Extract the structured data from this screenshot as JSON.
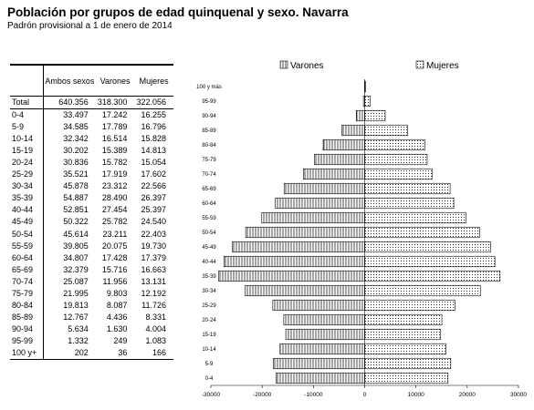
{
  "header": {
    "title": "Población por grupos de edad quinquenal y sexo. Navarra",
    "subtitle": "Padrón provisional a 1 de enero de 2014"
  },
  "table": {
    "columns": [
      "Ambos sexos",
      "Varones",
      "Mujeres"
    ],
    "total": {
      "label": "Total",
      "ambos": "640.356",
      "varones": "318.300",
      "mujeres": "322.056"
    },
    "rows": [
      {
        "label": "0-4",
        "ambos": "33.497",
        "varones": "17.242",
        "mujeres": "16.255"
      },
      {
        "label": "5-9",
        "ambos": "34.585",
        "varones": "17.789",
        "mujeres": "16.796"
      },
      {
        "label": "10-14",
        "ambos": "32.342",
        "varones": "16.514",
        "mujeres": "15.828"
      },
      {
        "label": "15-19",
        "ambos": "30.202",
        "varones": "15.389",
        "mujeres": "14.813"
      },
      {
        "label": "20-24",
        "ambos": "30.836",
        "varones": "15.782",
        "mujeres": "15.054"
      },
      {
        "label": "25-29",
        "ambos": "35.521",
        "varones": "17.919",
        "mujeres": "17.602"
      },
      {
        "label": "30-34",
        "ambos": "45.878",
        "varones": "23.312",
        "mujeres": "22.566"
      },
      {
        "label": "35-39",
        "ambos": "54.887",
        "varones": "28.490",
        "mujeres": "26.397"
      },
      {
        "label": "40-44",
        "ambos": "52.851",
        "varones": "27.454",
        "mujeres": "25.397"
      },
      {
        "label": "45-49",
        "ambos": "50.322",
        "varones": "25.782",
        "mujeres": "24.540"
      },
      {
        "label": "50-54",
        "ambos": "45.614",
        "varones": "23.211",
        "mujeres": "22.403"
      },
      {
        "label": "55-59",
        "ambos": "39.805",
        "varones": "20.075",
        "mujeres": "19.730"
      },
      {
        "label": "60-64",
        "ambos": "34.807",
        "varones": "17.428",
        "mujeres": "17.379"
      },
      {
        "label": "65-69",
        "ambos": "32.379",
        "varones": "15.716",
        "mujeres": "16.663"
      },
      {
        "label": "70-74",
        "ambos": "25.087",
        "varones": "11.956",
        "mujeres": "13.131"
      },
      {
        "label": "75-79",
        "ambos": "21.995",
        "varones": "9.803",
        "mujeres": "12.192"
      },
      {
        "label": "80-84",
        "ambos": "19.813",
        "varones": "8.087",
        "mujeres": "11.726"
      },
      {
        "label": "85-89",
        "ambos": "12.767",
        "varones": "4.436",
        "mujeres": "8.331"
      },
      {
        "label": "90-94",
        "ambos": "5.634",
        "varones": "1.630",
        "mujeres": "4.004"
      },
      {
        "label": "95-99",
        "ambos": "1.332",
        "varones": "249",
        "mujeres": "1.083"
      },
      {
        "label": "100 y+",
        "ambos": "202",
        "varones": "36",
        "mujeres": "166"
      }
    ]
  },
  "chart_data": {
    "type": "bar",
    "orientation": "horizontal",
    "title": "",
    "categories": [
      "0-4",
      "5-9",
      "10-14",
      "15-19",
      "20-24",
      "25-29",
      "30-34",
      "35-39",
      "40-44",
      "45-49",
      "50-54",
      "55-59",
      "60-64",
      "65-69",
      "70-74",
      "75-79",
      "80-84",
      "85-89",
      "90-94",
      "95-99",
      "100 y más"
    ],
    "series": [
      {
        "name": "Varones",
        "values": [
          -17242,
          -17789,
          -16514,
          -15389,
          -15782,
          -17919,
          -23312,
          -28490,
          -27454,
          -25782,
          -23211,
          -20075,
          -17428,
          -15716,
          -11956,
          -9803,
          -8087,
          -4436,
          -1630,
          -249,
          -36
        ]
      },
      {
        "name": "Mujeres",
        "values": [
          16255,
          16796,
          15828,
          14813,
          15054,
          17602,
          22566,
          26397,
          25397,
          24540,
          22403,
          19730,
          17379,
          16663,
          13131,
          12192,
          11726,
          8331,
          4004,
          1083,
          166
        ]
      }
    ],
    "xlim": [
      -30000,
      30000
    ],
    "xticks": [
      -30000,
      -20000,
      -10000,
      0,
      10000,
      20000,
      30000
    ],
    "legend_position": "top",
    "grid": false
  }
}
